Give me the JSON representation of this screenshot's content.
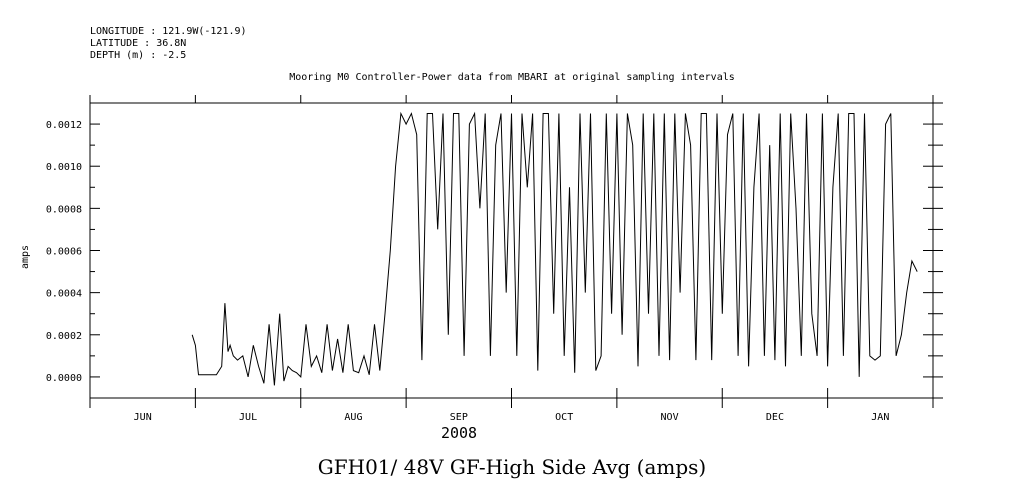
{
  "header": {
    "longitude": "LONGITUDE : 121.9W(-121.9)",
    "latitude": "LATITUDE : 36.8N",
    "depth": "DEPTH (m) : -2.5"
  },
  "chart_data": {
    "type": "line",
    "title": "Mooring M0 Controller-Power data from MBARI at original sampling intervals",
    "xlabel": "2008",
    "ylabel": "amps",
    "caption": "GFH01/ 48V GF-High Side Avg (amps)",
    "x_tick_labels": [
      "JUN",
      "JUL",
      "AUG",
      "SEP",
      "OCT",
      "NOV",
      "DEC",
      "JAN"
    ],
    "y_tick_labels": [
      "0.0000",
      "0.0002",
      "0.0004",
      "0.0006",
      "0.0008",
      "0.0010",
      "0.0012"
    ],
    "ylim": [
      -0.0001,
      0.0013
    ],
    "xlim_months": [
      0,
      8
    ],
    "grid": false,
    "series": [
      {
        "x": [
          0.97,
          1.0,
          1.03,
          1.08,
          1.12,
          1.16,
          1.2,
          1.25,
          1.28,
          1.31,
          1.33,
          1.36,
          1.4,
          1.45,
          1.5,
          1.55,
          1.6,
          1.65,
          1.7,
          1.75,
          1.8,
          1.84,
          1.88,
          1.92,
          1.96,
          2.0,
          2.05,
          2.1,
          2.15,
          2.2,
          2.25,
          2.3,
          2.35,
          2.4,
          2.45,
          2.5,
          2.55,
          2.6,
          2.65,
          2.7,
          2.75,
          2.8,
          2.85,
          2.9,
          2.95,
          3.0,
          3.05,
          3.1,
          3.15,
          3.2,
          3.25,
          3.3,
          3.35,
          3.4,
          3.45,
          3.5,
          3.55,
          3.6,
          3.65,
          3.7,
          3.75,
          3.8,
          3.85,
          3.9,
          3.95,
          4.0,
          4.05,
          4.1,
          4.15,
          4.2,
          4.25,
          4.3,
          4.35,
          4.4,
          4.45,
          4.5,
          4.55,
          4.6,
          4.65,
          4.7,
          4.75,
          4.8,
          4.85,
          4.9,
          4.95,
          5.0,
          5.05,
          5.1,
          5.15,
          5.2,
          5.25,
          5.3,
          5.35,
          5.4,
          5.45,
          5.5,
          5.55,
          5.6,
          5.65,
          5.7,
          5.75,
          5.8,
          5.85,
          5.9,
          5.95,
          6.0,
          6.05,
          6.1,
          6.15,
          6.2,
          6.25,
          6.3,
          6.35,
          6.4,
          6.45,
          6.5,
          6.55,
          6.6,
          6.65,
          6.7,
          6.75,
          6.8,
          6.85,
          6.9,
          6.95,
          7.0,
          7.05,
          7.1,
          7.15,
          7.2,
          7.25,
          7.3,
          7.35,
          7.4,
          7.45,
          7.5,
          7.55,
          7.6,
          7.65,
          7.7,
          7.75,
          7.8,
          7.85
        ],
        "y": [
          0.0002,
          0.00015,
          1e-05,
          1e-05,
          1e-05,
          1e-05,
          1e-05,
          5e-05,
          0.00035,
          0.00012,
          0.00015,
          0.0001,
          8e-05,
          0.0001,
          0.0,
          0.00015,
          5e-05,
          -3e-05,
          0.00025,
          -4e-05,
          0.0003,
          -2e-05,
          5e-05,
          3e-05,
          2e-05,
          0.0,
          0.00025,
          5e-05,
          0.0001,
          2e-05,
          0.00025,
          3e-05,
          0.00018,
          2e-05,
          0.00025,
          3e-05,
          2e-05,
          0.0001,
          1e-05,
          0.00025,
          3e-05,
          0.0003,
          0.0006,
          0.001,
          0.00125,
          0.0012,
          0.00125,
          0.00115,
          8e-05,
          0.00125,
          0.00125,
          0.0007,
          0.00125,
          0.0002,
          0.00125,
          0.00125,
          0.0001,
          0.0012,
          0.00125,
          0.0008,
          0.00125,
          0.0001,
          0.0011,
          0.00125,
          0.0004,
          0.00125,
          0.0001,
          0.00125,
          0.0009,
          0.00125,
          3e-05,
          0.00125,
          0.00125,
          0.0003,
          0.00125,
          0.0001,
          0.0009,
          2e-05,
          0.00125,
          0.0004,
          0.00125,
          3e-05,
          0.0001,
          0.00125,
          0.0003,
          0.00125,
          0.0002,
          0.00125,
          0.0011,
          5e-05,
          0.00125,
          0.0003,
          0.00125,
          0.0001,
          0.00125,
          8e-05,
          0.00125,
          0.0004,
          0.00125,
          0.0011,
          8e-05,
          0.00125,
          0.00125,
          8e-05,
          0.00125,
          0.0003,
          0.00115,
          0.00125,
          0.0001,
          0.00125,
          5e-05,
          0.0009,
          0.00125,
          0.0001,
          0.0011,
          8e-05,
          0.00125,
          5e-05,
          0.00125,
          0.0008,
          0.0001,
          0.00125,
          0.0003,
          0.0001,
          0.00125,
          5e-05,
          0.0009,
          0.00125,
          0.0001,
          0.00125,
          0.00125,
          0.0,
          0.00125,
          0.0001,
          8e-05,
          0.0001,
          0.0012,
          0.00125,
          0.0001,
          0.0002,
          0.0004,
          0.00055,
          0.0005
        ]
      }
    ]
  }
}
